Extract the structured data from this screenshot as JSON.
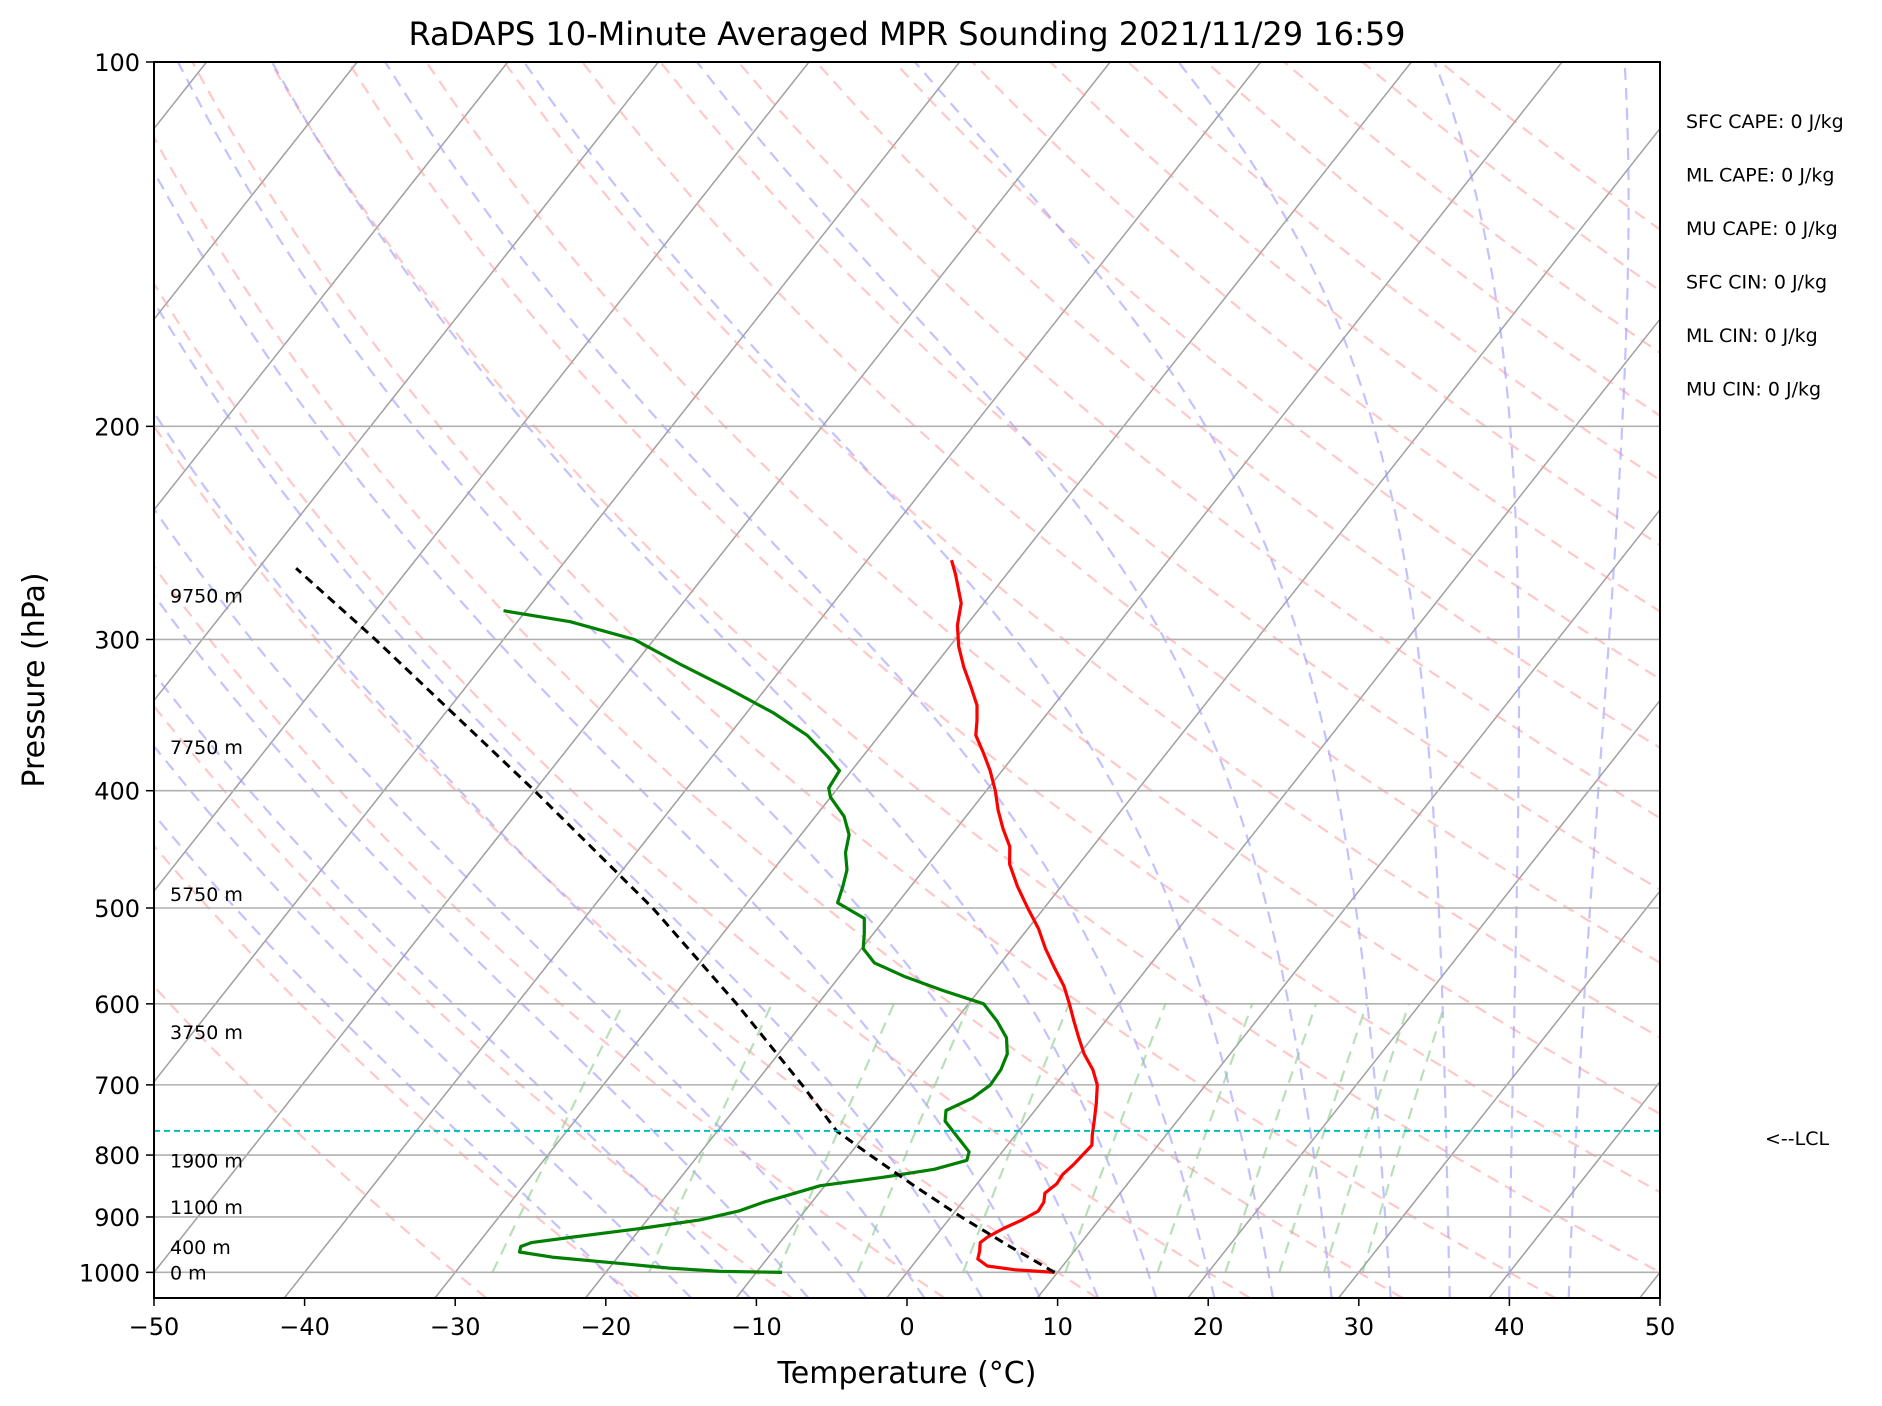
{
  "chart_data": {
    "type": "line",
    "title": "RaDAPS 10-Minute Averaged MPR Sounding 2021/11/29 16:59",
    "xlabel": "Temperature (°C)",
    "ylabel": "Pressure (hPa)",
    "xlim": [
      -50,
      50
    ],
    "ylim_hpa": [
      1050,
      100
    ],
    "y_scale": "log",
    "skew": "skew-T log-p",
    "x_ticks": [
      "−50",
      "−40",
      "−30",
      "−20",
      "−10",
      "0",
      "10",
      "20",
      "30",
      "40",
      "50"
    ],
    "x_tick_values": [
      -50,
      -40,
      -30,
      -20,
      -10,
      0,
      10,
      20,
      30,
      40,
      50
    ],
    "y_ticks": [
      "100",
      "200",
      "300",
      "400",
      "500",
      "600",
      "700",
      "800",
      "900",
      "1000"
    ],
    "y_tick_values": [
      100,
      200,
      300,
      400,
      500,
      600,
      700,
      800,
      900,
      1000
    ],
    "grid": true,
    "series": [
      {
        "color": "#ff0000",
        "points": [
          {
            "p": 1000,
            "t": 9.8
          },
          {
            "p": 995,
            "t": 7.0
          },
          {
            "p": 988,
            "t": 5.0
          },
          {
            "p": 975,
            "t": 4.0
          },
          {
            "p": 960,
            "t": 3.7
          },
          {
            "p": 945,
            "t": 3.3
          },
          {
            "p": 935,
            "t": 3.5
          },
          {
            "p": 920,
            "t": 4.1
          },
          {
            "p": 905,
            "t": 4.9
          },
          {
            "p": 890,
            "t": 5.5
          },
          {
            "p": 875,
            "t": 5.4
          },
          {
            "p": 860,
            "t": 5.0
          },
          {
            "p": 845,
            "t": 5.3
          },
          {
            "p": 830,
            "t": 5.2
          },
          {
            "p": 815,
            "t": 5.4
          },
          {
            "p": 800,
            "t": 5.5
          },
          {
            "p": 785,
            "t": 5.6
          },
          {
            "p": 770,
            "t": 5.1
          },
          {
            "p": 750,
            "t": 4.5
          },
          {
            "p": 725,
            "t": 3.7
          },
          {
            "p": 700,
            "t": 2.8
          },
          {
            "p": 680,
            "t": 1.7
          },
          {
            "p": 660,
            "t": 0.3
          },
          {
            "p": 640,
            "t": -0.9
          },
          {
            "p": 620,
            "t": -2.1
          },
          {
            "p": 600,
            "t": -3.3
          },
          {
            "p": 580,
            "t": -4.6
          },
          {
            "p": 560,
            "t": -6.2
          },
          {
            "p": 540,
            "t": -7.8
          },
          {
            "p": 520,
            "t": -9.3
          },
          {
            "p": 500,
            "t": -11.1
          },
          {
            "p": 480,
            "t": -12.9
          },
          {
            "p": 460,
            "t": -14.6
          },
          {
            "p": 445,
            "t": -15.5
          },
          {
            "p": 430,
            "t": -16.9
          },
          {
            "p": 415,
            "t": -18.2
          },
          {
            "p": 400,
            "t": -19.4
          },
          {
            "p": 385,
            "t": -20.8
          },
          {
            "p": 372,
            "t": -22.2
          },
          {
            "p": 360,
            "t": -23.6
          },
          {
            "p": 350,
            "t": -24.3
          },
          {
            "p": 340,
            "t": -25.1
          },
          {
            "p": 328,
            "t": -26.5
          },
          {
            "p": 316,
            "t": -28.0
          },
          {
            "p": 304,
            "t": -29.4
          },
          {
            "p": 292,
            "t": -30.6
          },
          {
            "p": 280,
            "t": -31.5
          },
          {
            "p": 272,
            "t": -32.5
          },
          {
            "p": 265,
            "t": -33.4
          },
          {
            "p": 258,
            "t": -34.4
          }
        ]
      },
      {
        "color": "#008000",
        "points": [
          {
            "p": 1000,
            "t": -8.3
          },
          {
            "p": 998,
            "t": -12.5
          },
          {
            "p": 992,
            "t": -16.0
          },
          {
            "p": 982,
            "t": -20.0
          },
          {
            "p": 972,
            "t": -24.2
          },
          {
            "p": 962,
            "t": -26.8
          },
          {
            "p": 952,
            "t": -27.0
          },
          {
            "p": 945,
            "t": -26.5
          },
          {
            "p": 935,
            "t": -24.0
          },
          {
            "p": 920,
            "t": -20.0
          },
          {
            "p": 905,
            "t": -16.5
          },
          {
            "p": 890,
            "t": -14.4
          },
          {
            "p": 875,
            "t": -13.2
          },
          {
            "p": 862,
            "t": -11.8
          },
          {
            "p": 848,
            "t": -10.3
          },
          {
            "p": 835,
            "t": -6.7
          },
          {
            "p": 822,
            "t": -3.6
          },
          {
            "p": 808,
            "t": -1.9
          },
          {
            "p": 795,
            "t": -2.2
          },
          {
            "p": 775,
            "t": -3.6
          },
          {
            "p": 750,
            "t": -5.4
          },
          {
            "p": 735,
            "t": -5.9
          },
          {
            "p": 718,
            "t": -4.8
          },
          {
            "p": 700,
            "t": -4.3
          },
          {
            "p": 680,
            "t": -4.4
          },
          {
            "p": 660,
            "t": -4.8
          },
          {
            "p": 640,
            "t": -5.7
          },
          {
            "p": 620,
            "t": -7.2
          },
          {
            "p": 600,
            "t": -9.0
          },
          {
            "p": 585,
            "t": -12.4
          },
          {
            "p": 570,
            "t": -15.6
          },
          {
            "p": 555,
            "t": -18.4
          },
          {
            "p": 540,
            "t": -19.9
          },
          {
            "p": 525,
            "t": -20.6
          },
          {
            "p": 510,
            "t": -21.4
          },
          {
            "p": 495,
            "t": -24.0
          },
          {
            "p": 480,
            "t": -24.5
          },
          {
            "p": 465,
            "t": -25.1
          },
          {
            "p": 450,
            "t": -26.1
          },
          {
            "p": 435,
            "t": -26.8
          },
          {
            "p": 420,
            "t": -28.1
          },
          {
            "p": 405,
            "t": -30.0
          },
          {
            "p": 398,
            "t": -30.6
          },
          {
            "p": 385,
            "t": -30.8
          },
          {
            "p": 375,
            "t": -32.3
          },
          {
            "p": 360,
            "t": -34.8
          },
          {
            "p": 345,
            "t": -38.2
          },
          {
            "p": 330,
            "t": -42.3
          },
          {
            "p": 315,
            "t": -46.8
          },
          {
            "p": 300,
            "t": -51.3
          },
          {
            "p": 290,
            "t": -56.5
          },
          {
            "p": 284,
            "t": -61.5
          }
        ]
      },
      {
        "color": "#000000",
        "style": "dashed",
        "points": [
          {
            "p": 1000,
            "t": 9.8
          },
          {
            "p": 950,
            "t": 5.3
          },
          {
            "p": 900,
            "t": 0.7
          },
          {
            "p": 850,
            "t": -3.9
          },
          {
            "p": 800,
            "t": -8.6
          },
          {
            "p": 764,
            "t": -12.1
          },
          {
            "p": 700,
            "t": -16.8
          },
          {
            "p": 600,
            "t": -25.4
          },
          {
            "p": 500,
            "t": -36.0
          },
          {
            "p": 400,
            "t": -50.0
          },
          {
            "p": 300,
            "t": -68.5
          },
          {
            "p": 262,
            "t": -77.5
          }
        ]
      }
    ],
    "lcl": {
      "p": 764,
      "label": "<--LCL",
      "color": "#00bfbf"
    },
    "height_labels": [
      {
        "text": "0 m",
        "p": 1000
      },
      {
        "text": "400 m",
        "p": 953
      },
      {
        "text": "1100 m",
        "p": 883
      },
      {
        "text": "1900 m",
        "p": 808
      },
      {
        "text": "3750 m",
        "p": 633
      },
      {
        "text": "5750 m",
        "p": 487
      },
      {
        "text": "7750 m",
        "p": 368
      },
      {
        "text": "9750 m",
        "p": 276
      }
    ],
    "indices": [
      "SFC CAPE: 0 J/kg",
      "ML CAPE: 0 J/kg",
      "MU CAPE: 0 J/kg",
      "SFC CIN: 0 J/kg",
      "ML CIN: 0 J/kg",
      "MU CIN: 0 J/kg"
    ],
    "background_lines": {
      "isotherm_color": "#808080",
      "dry_adiabat_color": "#ff9999",
      "moist_adiabat_color": "#9999ff",
      "mixing_ratio_color": "#88cc88"
    }
  }
}
